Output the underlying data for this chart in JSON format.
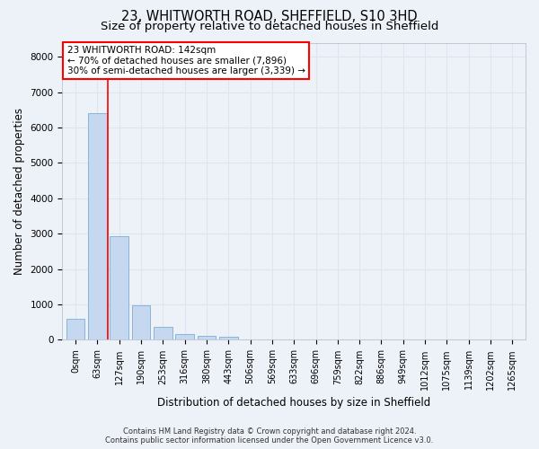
{
  "title1": "23, WHITWORTH ROAD, SHEFFIELD, S10 3HD",
  "title2": "Size of property relative to detached houses in Sheffield",
  "xlabel": "Distribution of detached houses by size in Sheffield",
  "ylabel": "Number of detached properties",
  "bar_labels": [
    "0sqm",
    "63sqm",
    "127sqm",
    "190sqm",
    "253sqm",
    "316sqm",
    "380sqm",
    "443sqm",
    "506sqm",
    "569sqm",
    "633sqm",
    "696sqm",
    "759sqm",
    "822sqm",
    "886sqm",
    "949sqm",
    "1012sqm",
    "1075sqm",
    "1139sqm",
    "1202sqm",
    "1265sqm"
  ],
  "bar_values": [
    600,
    6420,
    2920,
    980,
    360,
    165,
    110,
    90,
    0,
    0,
    0,
    0,
    0,
    0,
    0,
    0,
    0,
    0,
    0,
    0,
    0
  ],
  "bar_color": "#c5d8ef",
  "bar_edge_color": "#7aaed4",
  "vline_x": 1.5,
  "annotation_text": "23 WHITWORTH ROAD: 142sqm\n← 70% of detached houses are smaller (7,896)\n30% of semi-detached houses are larger (3,339) →",
  "annotation_box_color": "white",
  "annotation_box_edge_color": "red",
  "vline_color": "red",
  "ylim": [
    0,
    8400
  ],
  "yticks": [
    0,
    1000,
    2000,
    3000,
    4000,
    5000,
    6000,
    7000,
    8000
  ],
  "background_color": "#edf1f8",
  "grid_color": "#dde6f0",
  "footer": "Contains HM Land Registry data © Crown copyright and database right 2024.\nContains public sector information licensed under the Open Government Licence v3.0.",
  "title1_fontsize": 10.5,
  "title2_fontsize": 9.5,
  "xlabel_fontsize": 8.5,
  "ylabel_fontsize": 8.5,
  "tick_fontsize": 7,
  "annotation_fontsize": 7.5,
  "footer_fontsize": 6
}
